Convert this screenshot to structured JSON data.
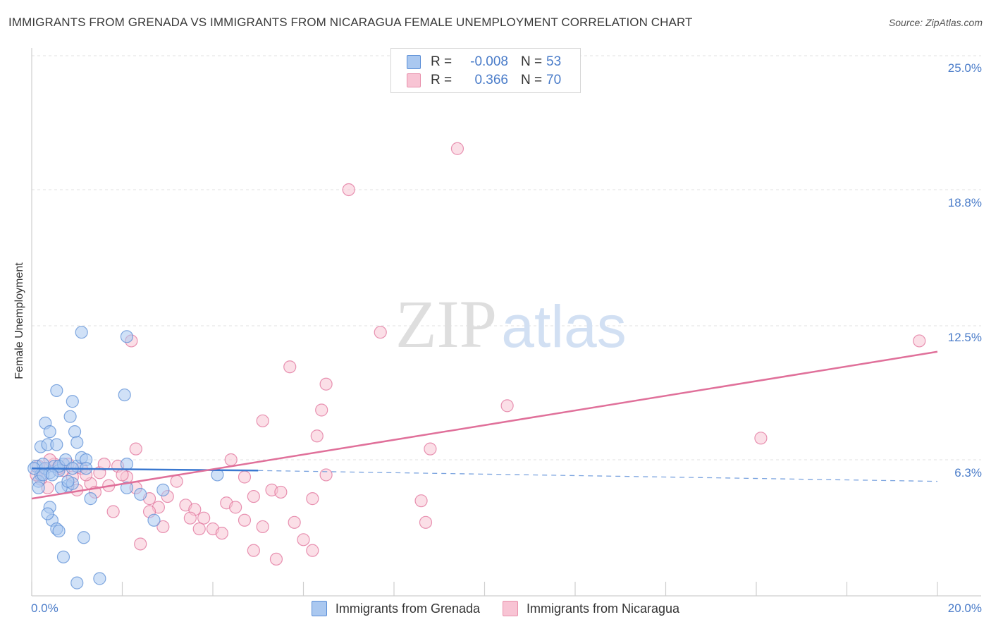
{
  "title": "IMMIGRANTS FROM GRENADA VS IMMIGRANTS FROM NICARAGUA FEMALE UNEMPLOYMENT CORRELATION CHART",
  "source": "Source: ZipAtlas.com",
  "watermark": {
    "part1": "ZIP",
    "part2": "atlas"
  },
  "stats": [
    {
      "r_label": "R =",
      "r_value": "-0.008",
      "n_label": "N =",
      "n_value": "53",
      "color": "#aac8f0",
      "border": "#5b8ed6"
    },
    {
      "r_label": "R =",
      "r_value": "0.366",
      "n_label": "N =",
      "n_value": "70",
      "color": "#f8c4d4",
      "border": "#e891ac"
    }
  ],
  "chart_data": {
    "type": "scatter",
    "title": "IMMIGRANTS FROM GRENADA VS IMMIGRANTS FROM NICARAGUA FEMALE UNEMPLOYMENT CORRELATION CHART",
    "xlabel": "",
    "ylabel": "Female Unemployment",
    "xlim": [
      0,
      20
    ],
    "ylim": [
      0,
      25
    ],
    "x_tick_labels": [
      "0.0%",
      "20.0%"
    ],
    "y_ticks": [
      6.3,
      12.5,
      18.8,
      25.0
    ],
    "y_tick_labels": [
      "6.3%",
      "12.5%",
      "18.8%",
      "25.0%"
    ],
    "grid": true,
    "legend": [
      "Immigrants from Grenada",
      "Immigrants from Nicaragua"
    ],
    "series": [
      {
        "name": "Immigrants from Grenada",
        "color": "#5b8ed6",
        "fill": "#aac8f0",
        "trend": {
          "x0": 0,
          "y0": 5.9,
          "x1": 5.0,
          "y1": 5.8,
          "dash_to_x": 20,
          "dash_to_y": 5.3
        },
        "points": [
          [
            0.1,
            6.0
          ],
          [
            0.2,
            5.6
          ],
          [
            0.15,
            5.3
          ],
          [
            0.3,
            5.9
          ],
          [
            0.4,
            5.7
          ],
          [
            0.2,
            6.9
          ],
          [
            0.35,
            7.0
          ],
          [
            0.5,
            6.0
          ],
          [
            0.6,
            5.8
          ],
          [
            0.25,
            6.1
          ],
          [
            0.7,
            6.1
          ],
          [
            0.8,
            5.1
          ],
          [
            0.9,
            5.2
          ],
          [
            1.0,
            6.0
          ],
          [
            1.1,
            6.4
          ],
          [
            1.2,
            6.3
          ],
          [
            0.3,
            8.0
          ],
          [
            0.4,
            7.6
          ],
          [
            0.55,
            7.0
          ],
          [
            0.85,
            8.3
          ],
          [
            0.95,
            7.6
          ],
          [
            1.0,
            7.1
          ],
          [
            0.55,
            9.5
          ],
          [
            0.9,
            9.0
          ],
          [
            1.1,
            12.2
          ],
          [
            2.1,
            12.0
          ],
          [
            2.05,
            9.3
          ],
          [
            2.1,
            6.1
          ],
          [
            2.1,
            5.0
          ],
          [
            2.4,
            4.7
          ],
          [
            2.7,
            3.5
          ],
          [
            2.9,
            4.9
          ],
          [
            0.4,
            4.1
          ],
          [
            0.45,
            3.5
          ],
          [
            0.35,
            3.8
          ],
          [
            0.55,
            3.1
          ],
          [
            0.6,
            3.0
          ],
          [
            1.15,
            2.7
          ],
          [
            1.3,
            4.5
          ],
          [
            0.7,
            1.8
          ],
          [
            1.0,
            0.6
          ],
          [
            1.5,
            0.8
          ],
          [
            4.1,
            5.6
          ],
          [
            0.6,
            6.0
          ],
          [
            0.75,
            6.3
          ],
          [
            0.9,
            5.9
          ],
          [
            0.65,
            5.0
          ],
          [
            0.15,
            5.0
          ],
          [
            0.25,
            5.6
          ],
          [
            0.45,
            5.6
          ],
          [
            0.8,
            5.3
          ],
          [
            1.2,
            5.9
          ],
          [
            0.05,
            5.9
          ]
        ]
      },
      {
        "name": "Immigrants from Nicaragua",
        "color": "#e0709a",
        "fill": "#f8c4d4",
        "trend": {
          "x0": 0,
          "y0": 4.5,
          "x1": 20,
          "y1": 11.3
        },
        "points": [
          [
            9.4,
            20.7
          ],
          [
            7.0,
            18.8
          ],
          [
            7.7,
            12.2
          ],
          [
            2.2,
            11.8
          ],
          [
            19.6,
            11.8
          ],
          [
            5.7,
            10.6
          ],
          [
            6.5,
            9.8
          ],
          [
            6.4,
            8.6
          ],
          [
            5.1,
            8.1
          ],
          [
            10.5,
            8.8
          ],
          [
            6.3,
            7.4
          ],
          [
            8.8,
            6.8
          ],
          [
            2.3,
            6.8
          ],
          [
            16.1,
            7.3
          ],
          [
            4.4,
            6.3
          ],
          [
            0.2,
            5.4
          ],
          [
            0.3,
            5.9
          ],
          [
            0.5,
            6.1
          ],
          [
            0.7,
            5.8
          ],
          [
            0.9,
            5.5
          ],
          [
            1.1,
            5.9
          ],
          [
            1.3,
            5.2
          ],
          [
            1.5,
            5.7
          ],
          [
            1.7,
            5.1
          ],
          [
            1.9,
            6.0
          ],
          [
            2.1,
            5.5
          ],
          [
            2.3,
            5.0
          ],
          [
            2.6,
            4.5
          ],
          [
            2.8,
            4.1
          ],
          [
            3.0,
            4.6
          ],
          [
            3.2,
            5.3
          ],
          [
            3.4,
            4.2
          ],
          [
            3.6,
            4.0
          ],
          [
            3.8,
            3.6
          ],
          [
            4.0,
            3.1
          ],
          [
            4.3,
            4.3
          ],
          [
            4.5,
            4.1
          ],
          [
            4.7,
            3.5
          ],
          [
            4.9,
            4.6
          ],
          [
            5.1,
            3.2
          ],
          [
            5.3,
            4.9
          ],
          [
            5.5,
            4.8
          ],
          [
            5.8,
            3.4
          ],
          [
            6.2,
            4.5
          ],
          [
            6.5,
            5.6
          ],
          [
            2.4,
            2.4
          ],
          [
            2.9,
            3.2
          ],
          [
            3.7,
            3.1
          ],
          [
            4.2,
            2.9
          ],
          [
            4.9,
            2.1
          ],
          [
            5.4,
            1.7
          ],
          [
            6.2,
            2.1
          ],
          [
            6.0,
            2.6
          ],
          [
            8.6,
            4.4
          ],
          [
            8.7,
            3.4
          ],
          [
            1.4,
            4.8
          ],
          [
            1.8,
            3.9
          ],
          [
            2.6,
            3.9
          ],
          [
            0.4,
            6.3
          ],
          [
            1.6,
            6.1
          ],
          [
            2.0,
            5.6
          ],
          [
            0.1,
            5.6
          ],
          [
            0.15,
            6.0
          ],
          [
            0.6,
            5.9
          ],
          [
            0.8,
            6.1
          ],
          [
            1.0,
            4.9
          ],
          [
            1.2,
            5.6
          ],
          [
            0.35,
            5.0
          ],
          [
            3.5,
            3.6
          ],
          [
            4.7,
            5.5
          ]
        ]
      }
    ]
  }
}
